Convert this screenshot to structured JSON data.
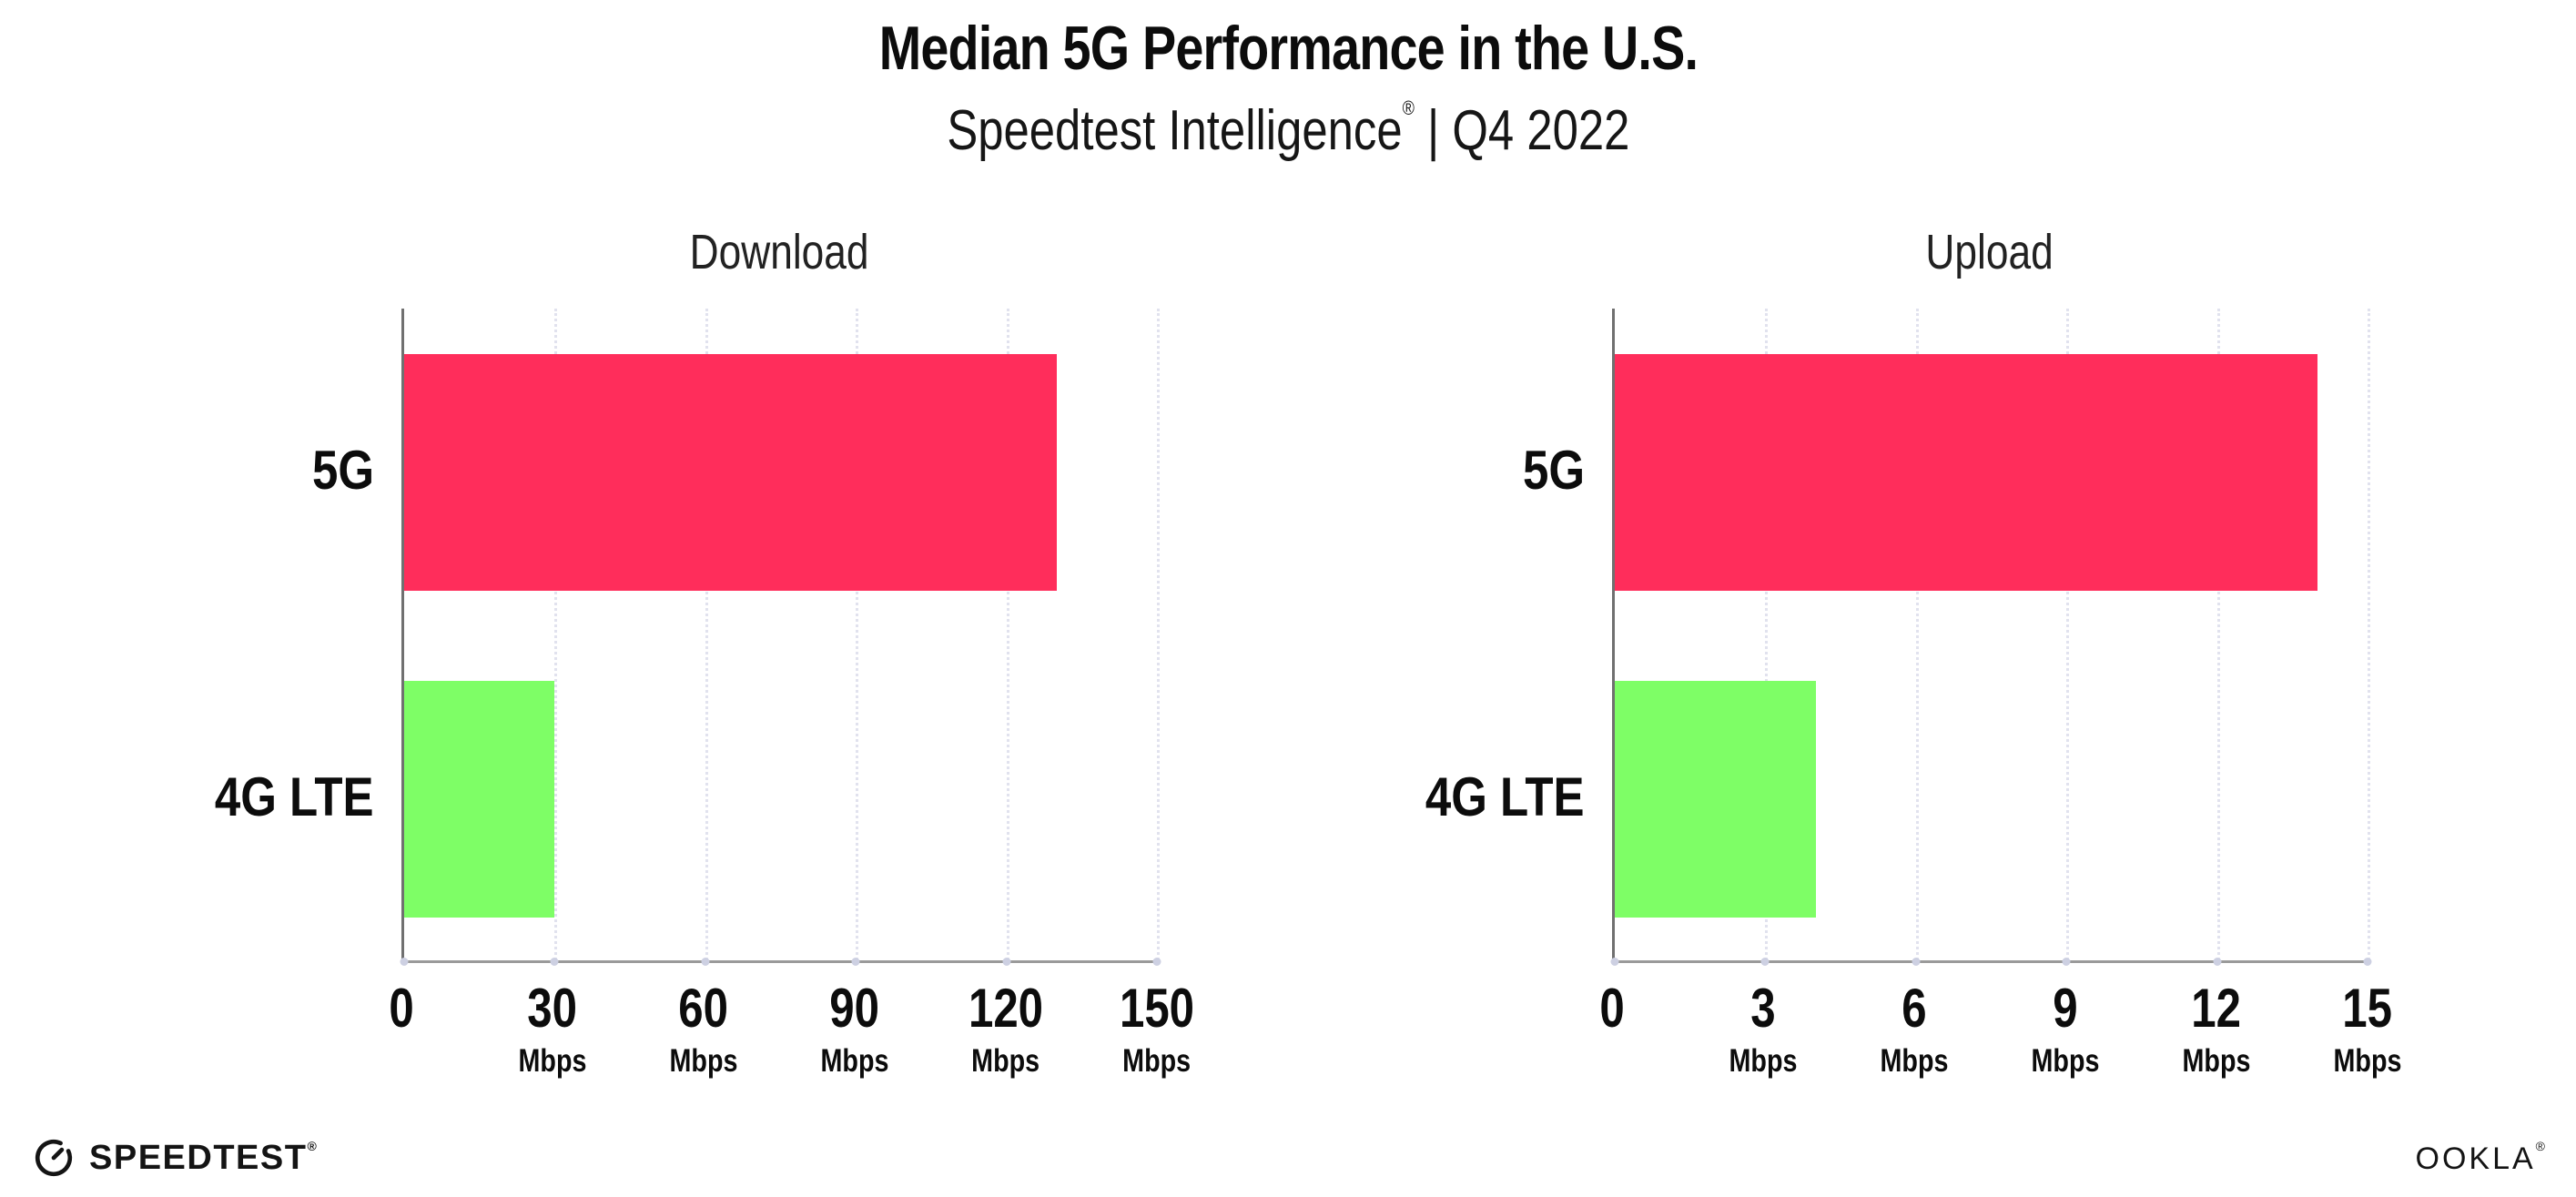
{
  "header": {
    "title": "Median 5G Performance in the U.S.",
    "subtitle_brand": "Speedtest Intelligence",
    "subtitle_reg": "®",
    "subtitle_rest": " | Q4 2022"
  },
  "chart_data": [
    {
      "type": "bar",
      "orientation": "horizontal",
      "title": "Download",
      "categories": [
        "5G",
        "4G LTE"
      ],
      "values": [
        130,
        30
      ],
      "unit": "Mbps",
      "xlim": [
        0,
        150
      ],
      "xticks": [
        0,
        30,
        60,
        90,
        120,
        150
      ],
      "bar_colors": [
        "#FF2D5B",
        "#7EFE66"
      ],
      "grid": "dotted-vertical",
      "legend": "none"
    },
    {
      "type": "bar",
      "orientation": "horizontal",
      "title": "Upload",
      "categories": [
        "5G",
        "4G LTE"
      ],
      "values": [
        14,
        4
      ],
      "unit": "Mbps",
      "xlim": [
        0,
        15
      ],
      "xticks": [
        0,
        3,
        6,
        9,
        12,
        15
      ],
      "bar_colors": [
        "#FF2D5B",
        "#7EFE66"
      ],
      "grid": "dotted-vertical",
      "legend": "none"
    }
  ],
  "footer": {
    "speedtest_label": "SPEEDTEST",
    "speedtest_reg": "®",
    "ookla_label": "OOKLA",
    "ookla_reg": "®"
  },
  "colors": {
    "bar_5g": "#FF2D5B",
    "bar_4g_lte": "#7EFE66",
    "axis_line": "#9a9a9a",
    "gridline": "#e1e2ee",
    "text": "#0c0c0c"
  }
}
